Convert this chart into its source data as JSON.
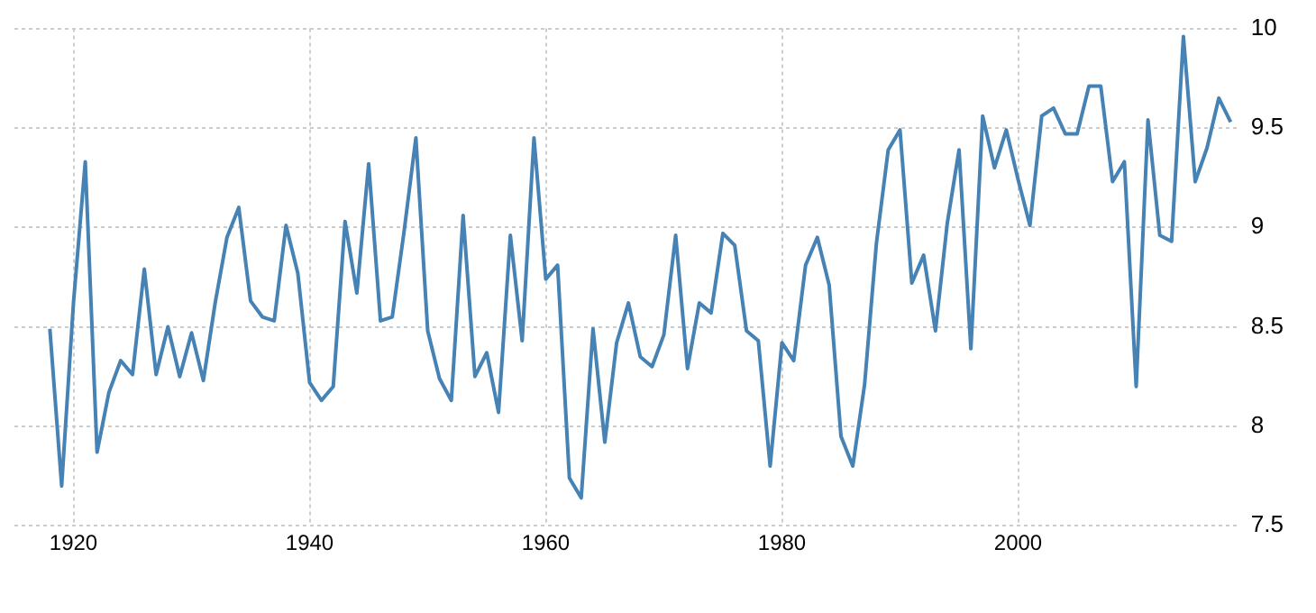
{
  "chart_data": {
    "type": "line",
    "x": [
      1918,
      1919,
      1920,
      1921,
      1922,
      1923,
      1924,
      1925,
      1926,
      1927,
      1928,
      1929,
      1930,
      1931,
      1932,
      1933,
      1934,
      1935,
      1936,
      1937,
      1938,
      1939,
      1940,
      1941,
      1942,
      1943,
      1944,
      1945,
      1946,
      1947,
      1948,
      1949,
      1950,
      1951,
      1952,
      1953,
      1954,
      1955,
      1956,
      1957,
      1958,
      1959,
      1960,
      1961,
      1962,
      1963,
      1964,
      1965,
      1966,
      1967,
      1968,
      1969,
      1970,
      1971,
      1972,
      1973,
      1974,
      1975,
      1976,
      1977,
      1978,
      1979,
      1980,
      1981,
      1982,
      1983,
      1984,
      1985,
      1986,
      1987,
      1988,
      1989,
      1990,
      1991,
      1992,
      1993,
      1994,
      1995,
      1996,
      1997,
      1998,
      1999,
      2000,
      2001,
      2002,
      2003,
      2004,
      2005,
      2006,
      2007,
      2008,
      2009,
      2010,
      2011,
      2012,
      2013,
      2014,
      2015,
      2016,
      2017,
      2018
    ],
    "series": [
      {
        "color": "#4682b4",
        "values": [
          8.49,
          7.7,
          8.62,
          9.33,
          7.87,
          8.17,
          8.33,
          8.26,
          8.79,
          8.26,
          8.5,
          8.25,
          8.47,
          8.23,
          8.62,
          8.95,
          9.1,
          8.63,
          8.55,
          8.53,
          9.01,
          8.77,
          8.22,
          8.13,
          8.2,
          9.03,
          8.67,
          9.32,
          8.53,
          8.55,
          8.98,
          9.45,
          8.48,
          8.24,
          8.13,
          9.06,
          8.25,
          8.37,
          8.07,
          8.96,
          8.43,
          9.45,
          8.74,
          8.81,
          7.74,
          7.64,
          8.49,
          7.92,
          8.42,
          8.62,
          8.35,
          8.3,
          8.46,
          8.96,
          8.29,
          8.62,
          8.57,
          8.97,
          8.91,
          8.48,
          8.43,
          7.8,
          8.42,
          8.33,
          8.81,
          8.95,
          8.71,
          7.95,
          7.8,
          8.21,
          8.92,
          9.39,
          9.49,
          8.72,
          8.86,
          8.48,
          9.02,
          9.39,
          8.39,
          9.56,
          9.3,
          9.49,
          9.24,
          9.01,
          9.56,
          9.6,
          9.47,
          9.47,
          9.71,
          9.71,
          9.23,
          9.33,
          8.2,
          9.54,
          8.96,
          8.93,
          9.96,
          9.23,
          9.4,
          9.65,
          9.53
        ]
      }
    ],
    "xlim": [
      1915,
      2018.5
    ],
    "xticks": [
      1920,
      1940,
      1960,
      1980,
      2000
    ],
    "ylim": [
      7.5,
      10
    ],
    "yticks": [
      7.5,
      8,
      8.5,
      9,
      9.5,
      10
    ],
    "grid": true,
    "legend": false,
    "marker": "none",
    "line_style": "solid"
  }
}
